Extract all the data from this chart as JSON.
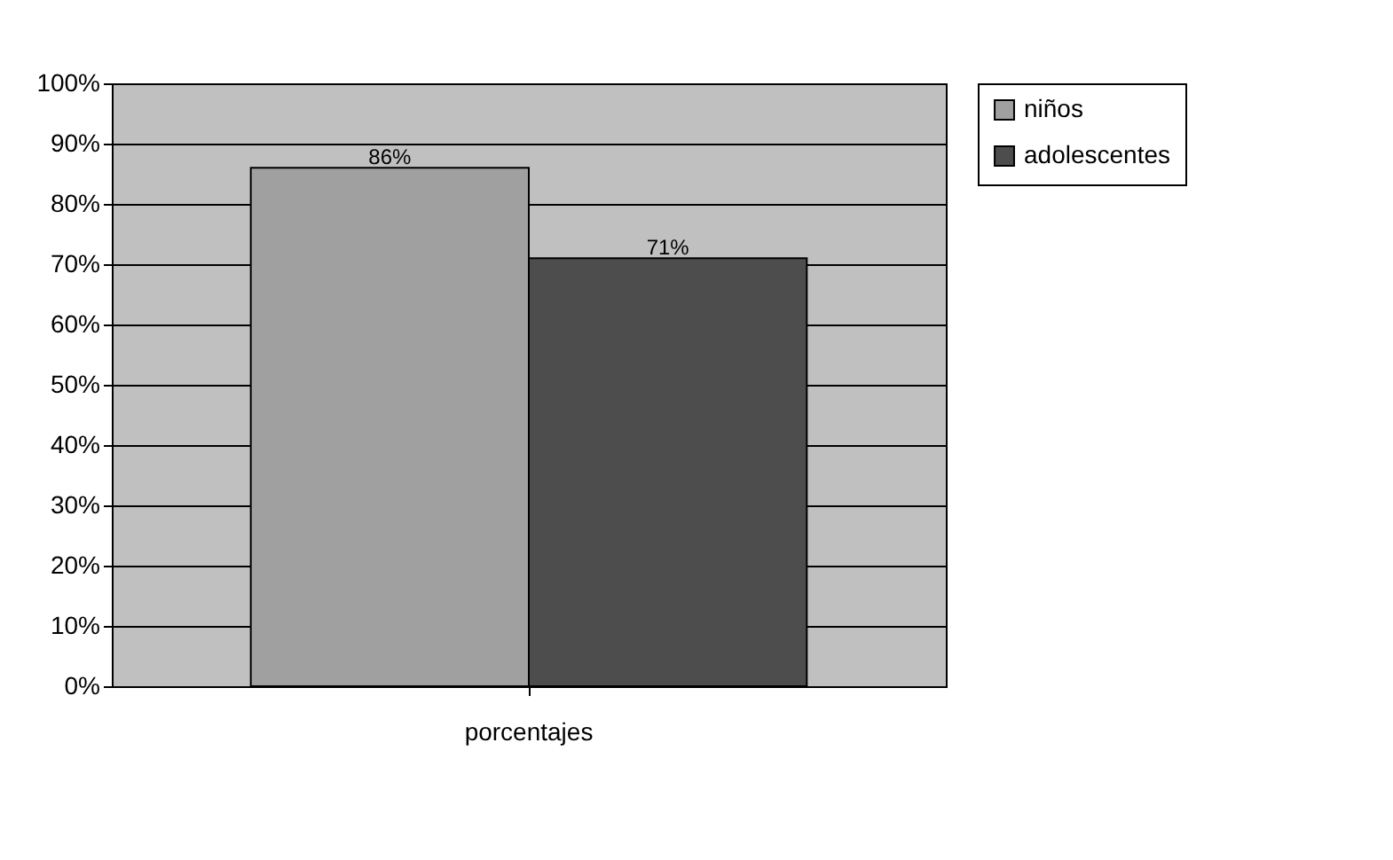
{
  "chart_data": {
    "type": "bar",
    "categories": [
      "porcentajes"
    ],
    "series": [
      {
        "name": "niños",
        "color": "#a0a0a0",
        "values": [
          86
        ],
        "value_labels": [
          "86%"
        ]
      },
      {
        "name": "adolescentes",
        "color": "#4d4d4d",
        "values": [
          71
        ],
        "value_labels": [
          "71%"
        ]
      }
    ],
    "ylim": [
      0,
      100
    ],
    "yticks": [
      {
        "value": 0,
        "label": "0%"
      },
      {
        "value": 10,
        "label": "10%"
      },
      {
        "value": 20,
        "label": "20%"
      },
      {
        "value": 30,
        "label": "30%"
      },
      {
        "value": 40,
        "label": "40%"
      },
      {
        "value": 50,
        "label": "50%"
      },
      {
        "value": 60,
        "label": "60%"
      },
      {
        "value": 70,
        "label": "70%"
      },
      {
        "value": 80,
        "label": "80%"
      },
      {
        "value": 90,
        "label": "90%"
      },
      {
        "value": 100,
        "label": "100%"
      }
    ],
    "grid": "y",
    "legend": "right"
  }
}
